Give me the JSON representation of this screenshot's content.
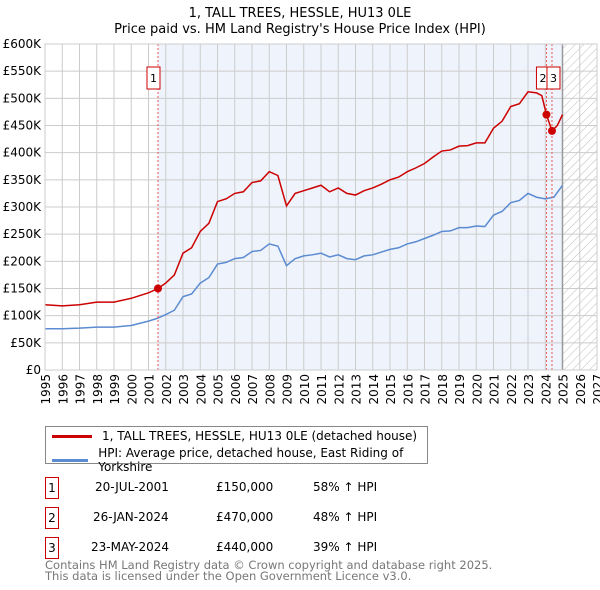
{
  "chart_data": {
    "type": "line",
    "title": "1, TALL TREES, HESSLE, HU13 0LE",
    "subtitle": "Price paid vs. HM Land Registry's House Price Index (HPI)",
    "xlim": [
      1995,
      2027
    ],
    "ylim": [
      0,
      600000
    ],
    "x_ticks": [
      "1995",
      "1996",
      "1997",
      "1998",
      "1999",
      "2000",
      "2001",
      "2002",
      "2003",
      "2004",
      "2005",
      "2006",
      "2007",
      "2008",
      "2009",
      "2010",
      "2011",
      "2012",
      "2013",
      "2014",
      "2015",
      "2016",
      "2017",
      "2018",
      "2019",
      "2020",
      "2021",
      "2022",
      "2023",
      "2024",
      "2025",
      "2026",
      "2027"
    ],
    "y_ticks": [
      {
        "v": 0,
        "label": "£0"
      },
      {
        "v": 50000,
        "label": "£50K"
      },
      {
        "v": 100000,
        "label": "£100K"
      },
      {
        "v": 150000,
        "label": "£150K"
      },
      {
        "v": 200000,
        "label": "£200K"
      },
      {
        "v": 250000,
        "label": "£250K"
      },
      {
        "v": 300000,
        "label": "£300K"
      },
      {
        "v": 350000,
        "label": "£350K"
      },
      {
        "v": 400000,
        "label": "£400K"
      },
      {
        "v": 450000,
        "label": "£450K"
      },
      {
        "v": 500000,
        "label": "£500K"
      },
      {
        "v": 550000,
        "label": "£550K"
      },
      {
        "v": 600000,
        "label": "£600K"
      }
    ],
    "shaded_range": [
      2001.55,
      2025.0
    ],
    "forecast_hatch": [
      2025.0,
      2027
    ],
    "series": [
      {
        "name": "1, TALL TREES, HESSLE, HU13 0LE (detached house)",
        "color": "#cc0000",
        "x": [
          1995,
          1996,
          1997,
          1998,
          1999,
          2000,
          2001,
          2001.55,
          2002,
          2002.5,
          2003,
          2003.5,
          2004,
          2004.5,
          2005,
          2005.5,
          2006,
          2006.5,
          2007,
          2007.5,
          2008,
          2008.5,
          2009,
          2009.5,
          2010,
          2010.5,
          2011,
          2011.5,
          2012,
          2012.5,
          2013,
          2013.5,
          2014,
          2014.5,
          2015,
          2015.5,
          2016,
          2016.5,
          2017,
          2017.5,
          2018,
          2018.5,
          2019,
          2019.5,
          2020,
          2020.5,
          2021,
          2021.5,
          2022,
          2022.5,
          2023,
          2023.5,
          2023.8,
          2024.07,
          2024.39,
          2024.7,
          2025
        ],
        "y": [
          120000,
          118000,
          120000,
          125000,
          125000,
          132000,
          142000,
          150000,
          160000,
          175000,
          215000,
          225000,
          255000,
          270000,
          310000,
          315000,
          325000,
          328000,
          345000,
          348000,
          365000,
          358000,
          302000,
          325000,
          330000,
          335000,
          340000,
          328000,
          335000,
          325000,
          322000,
          330000,
          335000,
          342000,
          350000,
          355000,
          365000,
          372000,
          380000,
          392000,
          403000,
          405000,
          412000,
          413000,
          418000,
          418000,
          445000,
          458000,
          485000,
          490000,
          512000,
          510000,
          505000,
          470000,
          440000,
          450000,
          470000
        ]
      },
      {
        "name": "HPI: Average price, detached house, East Riding of Yorkshire",
        "color": "#5b8bd0",
        "x": [
          1995,
          1996,
          1997,
          1998,
          1999,
          2000,
          2001,
          2001.5,
          2002,
          2002.5,
          2003,
          2003.5,
          2004,
          2004.5,
          2005,
          2005.5,
          2006,
          2006.5,
          2007,
          2007.5,
          2008,
          2008.5,
          2009,
          2009.5,
          2010,
          2010.5,
          2011,
          2011.5,
          2012,
          2012.5,
          2013,
          2013.5,
          2014,
          2014.5,
          2015,
          2015.5,
          2016,
          2016.5,
          2017,
          2017.5,
          2018,
          2018.5,
          2019,
          2019.5,
          2020,
          2020.5,
          2021,
          2021.5,
          2022,
          2022.5,
          2023,
          2023.5,
          2024,
          2024.5,
          2025
        ],
        "y": [
          76000,
          76000,
          77000,
          79000,
          79000,
          82000,
          90000,
          95000,
          102000,
          110000,
          135000,
          140000,
          160000,
          170000,
          195000,
          198000,
          205000,
          207000,
          218000,
          220000,
          232000,
          228000,
          192000,
          205000,
          210000,
          212000,
          215000,
          208000,
          212000,
          205000,
          203000,
          210000,
          212000,
          217000,
          222000,
          225000,
          232000,
          236000,
          242000,
          248000,
          255000,
          256000,
          262000,
          262000,
          265000,
          264000,
          285000,
          292000,
          308000,
          312000,
          325000,
          318000,
          315000,
          318000,
          340000
        ]
      }
    ],
    "sales": [
      {
        "label": "1",
        "x": 2001.55,
        "y": 150000,
        "date": "20-JUL-2001",
        "price": "£150,000",
        "hpi": "58% ↑ HPI"
      },
      {
        "label": "2",
        "x": 2024.07,
        "y": 470000,
        "date": "26-JAN-2024",
        "price": "£470,000",
        "hpi": "48% ↑ HPI"
      },
      {
        "label": "3",
        "x": 2024.39,
        "y": 440000,
        "date": "23-MAY-2024",
        "price": "£440,000",
        "hpi": "39% ↑ HPI"
      }
    ]
  },
  "legend": {
    "property": "1, TALL TREES, HESSLE, HU13 0LE (detached house)",
    "hpi": "HPI: Average price, detached house, East Riding of Yorkshire"
  },
  "footer": {
    "line1": "Contains HM Land Registry data © Crown copyright and database right 2025.",
    "line2": "This data is licensed under the Open Government Licence v3.0."
  }
}
